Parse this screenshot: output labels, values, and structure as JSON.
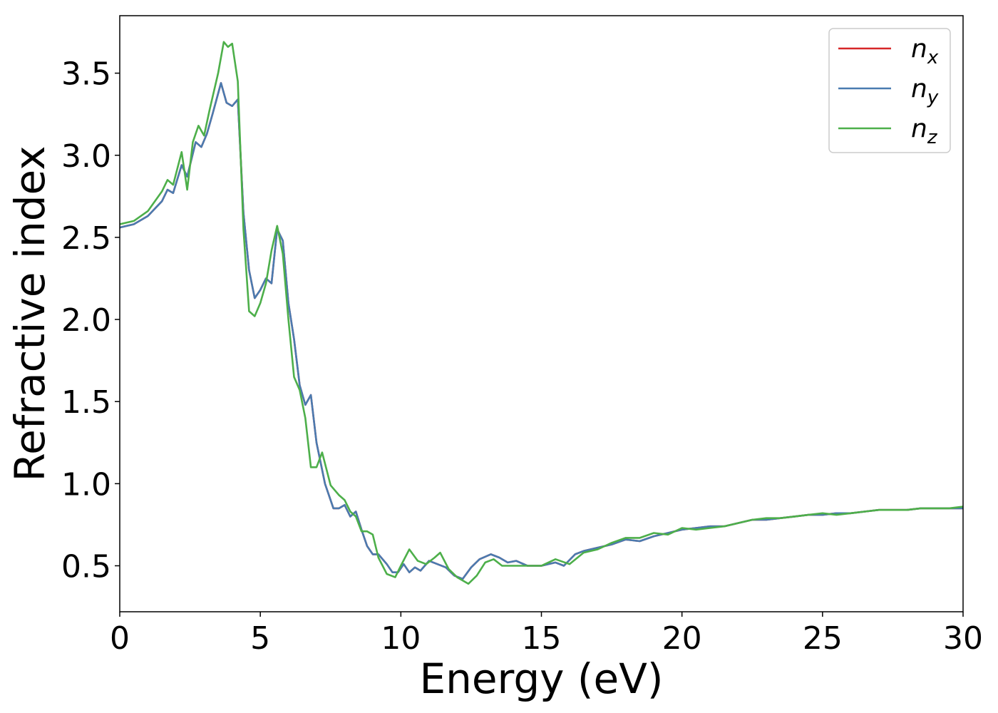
{
  "chart_data": {
    "type": "line",
    "title": "",
    "xlabel": "Energy (eV)",
    "ylabel": "Refractive index",
    "xlim": [
      0,
      30
    ],
    "ylim": [
      0.22,
      3.85
    ],
    "xticks": [
      0,
      5,
      10,
      15,
      20,
      25,
      30
    ],
    "xtick_labels": [
      "0",
      "5",
      "10",
      "15",
      "20",
      "25",
      "30"
    ],
    "yticks": [
      0.5,
      1.0,
      1.5,
      2.0,
      2.5,
      3.0,
      3.5
    ],
    "ytick_labels": [
      "0.5",
      "1.0",
      "1.5",
      "2.0",
      "2.5",
      "3.0",
      "3.5"
    ],
    "grid": false,
    "legend_position": "top-right",
    "series": [
      {
        "name": "n",
        "sub": "x",
        "color": "#d62728",
        "x": [
          0,
          0.5,
          1,
          1.5,
          1.7,
          1.9,
          2.2,
          2.4,
          2.7,
          2.9,
          3.1,
          3.3,
          3.6,
          3.8,
          4.0,
          4.2,
          4.4,
          4.6,
          4.8,
          5.0,
          5.2,
          5.4,
          5.6,
          5.8,
          6.0,
          6.2,
          6.4,
          6.6,
          6.8,
          7.0,
          7.3,
          7.6,
          7.8,
          8.0,
          8.2,
          8.4,
          8.6,
          8.8,
          9.0,
          9.2,
          9.5,
          9.7,
          9.9,
          10.1,
          10.3,
          10.5,
          10.7,
          11.0,
          11.3,
          11.6,
          11.9,
          12.2,
          12.5,
          12.8,
          13.2,
          13.5,
          13.8,
          14.1,
          14.5,
          15.0,
          15.5,
          15.8,
          16.2,
          16.5,
          17.0,
          17.5,
          18.0,
          18.5,
          19.0,
          19.5,
          20.0,
          20.5,
          21.0,
          21.5,
          22.0,
          22.5,
          23.0,
          23.5,
          24.0,
          24.5,
          25.0,
          25.5,
          26.0,
          26.5,
          27.0,
          27.5,
          28.0,
          28.5,
          29.0,
          29.5,
          30.0
        ],
        "y": [
          2.56,
          2.58,
          2.63,
          2.72,
          2.79,
          2.77,
          2.94,
          2.87,
          3.08,
          3.05,
          3.13,
          3.25,
          3.44,
          3.32,
          3.3,
          3.34,
          2.65,
          2.3,
          2.13,
          2.18,
          2.25,
          2.22,
          2.55,
          2.48,
          2.1,
          1.88,
          1.6,
          1.48,
          1.54,
          1.25,
          1.0,
          0.85,
          0.85,
          0.87,
          0.8,
          0.83,
          0.72,
          0.62,
          0.57,
          0.57,
          0.51,
          0.46,
          0.46,
          0.51,
          0.46,
          0.49,
          0.47,
          0.53,
          0.51,
          0.49,
          0.44,
          0.42,
          0.49,
          0.54,
          0.57,
          0.55,
          0.52,
          0.53,
          0.5,
          0.5,
          0.52,
          0.5,
          0.57,
          0.59,
          0.61,
          0.63,
          0.66,
          0.65,
          0.68,
          0.7,
          0.72,
          0.73,
          0.74,
          0.74,
          0.76,
          0.78,
          0.78,
          0.79,
          0.8,
          0.81,
          0.81,
          0.82,
          0.82,
          0.83,
          0.84,
          0.84,
          0.84,
          0.85,
          0.85,
          0.85,
          0.85
        ]
      },
      {
        "name": "n",
        "sub": "y",
        "color": "#4a7bb0",
        "x": [
          0,
          0.5,
          1,
          1.5,
          1.7,
          1.9,
          2.2,
          2.4,
          2.7,
          2.9,
          3.1,
          3.3,
          3.6,
          3.8,
          4.0,
          4.2,
          4.4,
          4.6,
          4.8,
          5.0,
          5.2,
          5.4,
          5.6,
          5.8,
          6.0,
          6.2,
          6.4,
          6.6,
          6.8,
          7.0,
          7.3,
          7.6,
          7.8,
          8.0,
          8.2,
          8.4,
          8.6,
          8.8,
          9.0,
          9.2,
          9.5,
          9.7,
          9.9,
          10.1,
          10.3,
          10.5,
          10.7,
          11.0,
          11.3,
          11.6,
          11.9,
          12.2,
          12.5,
          12.8,
          13.2,
          13.5,
          13.8,
          14.1,
          14.5,
          15.0,
          15.5,
          15.8,
          16.2,
          16.5,
          17.0,
          17.5,
          18.0,
          18.5,
          19.0,
          19.5,
          20.0,
          20.5,
          21.0,
          21.5,
          22.0,
          22.5,
          23.0,
          23.5,
          24.0,
          24.5,
          25.0,
          25.5,
          26.0,
          26.5,
          27.0,
          27.5,
          28.0,
          28.5,
          29.0,
          29.5,
          30.0
        ],
        "y": [
          2.56,
          2.58,
          2.63,
          2.72,
          2.79,
          2.77,
          2.94,
          2.87,
          3.08,
          3.05,
          3.13,
          3.25,
          3.44,
          3.32,
          3.3,
          3.34,
          2.65,
          2.3,
          2.13,
          2.18,
          2.25,
          2.22,
          2.55,
          2.48,
          2.1,
          1.88,
          1.6,
          1.48,
          1.54,
          1.25,
          1.0,
          0.85,
          0.85,
          0.87,
          0.8,
          0.83,
          0.72,
          0.62,
          0.57,
          0.57,
          0.51,
          0.46,
          0.46,
          0.51,
          0.46,
          0.49,
          0.47,
          0.53,
          0.51,
          0.49,
          0.44,
          0.42,
          0.49,
          0.54,
          0.57,
          0.55,
          0.52,
          0.53,
          0.5,
          0.5,
          0.52,
          0.5,
          0.57,
          0.59,
          0.61,
          0.63,
          0.66,
          0.65,
          0.68,
          0.7,
          0.72,
          0.73,
          0.74,
          0.74,
          0.76,
          0.78,
          0.78,
          0.79,
          0.8,
          0.81,
          0.81,
          0.82,
          0.82,
          0.83,
          0.84,
          0.84,
          0.84,
          0.85,
          0.85,
          0.85,
          0.85
        ]
      },
      {
        "name": "n",
        "sub": "z",
        "color": "#4daf4a",
        "x": [
          0,
          0.5,
          1,
          1.5,
          1.7,
          1.9,
          2.2,
          2.4,
          2.6,
          2.8,
          3.0,
          3.2,
          3.5,
          3.7,
          3.85,
          4.0,
          4.2,
          4.4,
          4.6,
          4.8,
          5.0,
          5.2,
          5.4,
          5.6,
          5.8,
          6.0,
          6.2,
          6.4,
          6.6,
          6.8,
          7.0,
          7.2,
          7.5,
          7.8,
          8.0,
          8.2,
          8.4,
          8.6,
          8.8,
          9.0,
          9.2,
          9.5,
          9.8,
          10.0,
          10.3,
          10.6,
          10.9,
          11.2,
          11.4,
          11.7,
          12.0,
          12.4,
          12.7,
          13.0,
          13.3,
          13.6,
          14.0,
          14.5,
          15.0,
          15.5,
          16.0,
          16.5,
          17.0,
          17.5,
          18.0,
          18.5,
          19.0,
          19.5,
          20.0,
          20.5,
          21.0,
          21.5,
          22.0,
          22.5,
          23.0,
          23.5,
          24.0,
          24.5,
          25.0,
          25.5,
          26.0,
          26.5,
          27.0,
          27.5,
          28.0,
          28.5,
          29.0,
          29.5,
          30.0
        ],
        "y": [
          2.58,
          2.6,
          2.66,
          2.78,
          2.85,
          2.82,
          3.02,
          2.79,
          3.08,
          3.18,
          3.12,
          3.28,
          3.5,
          3.69,
          3.66,
          3.68,
          3.45,
          2.55,
          2.05,
          2.02,
          2.1,
          2.22,
          2.42,
          2.57,
          2.4,
          2.0,
          1.65,
          1.57,
          1.4,
          1.1,
          1.1,
          1.19,
          0.99,
          0.93,
          0.9,
          0.83,
          0.8,
          0.71,
          0.71,
          0.69,
          0.55,
          0.45,
          0.43,
          0.5,
          0.6,
          0.53,
          0.51,
          0.55,
          0.58,
          0.48,
          0.43,
          0.39,
          0.44,
          0.52,
          0.54,
          0.5,
          0.5,
          0.5,
          0.5,
          0.54,
          0.51,
          0.58,
          0.6,
          0.64,
          0.67,
          0.67,
          0.7,
          0.69,
          0.73,
          0.72,
          0.73,
          0.74,
          0.76,
          0.78,
          0.79,
          0.79,
          0.8,
          0.81,
          0.82,
          0.81,
          0.82,
          0.83,
          0.84,
          0.84,
          0.84,
          0.85,
          0.85,
          0.85,
          0.86
        ]
      }
    ]
  }
}
